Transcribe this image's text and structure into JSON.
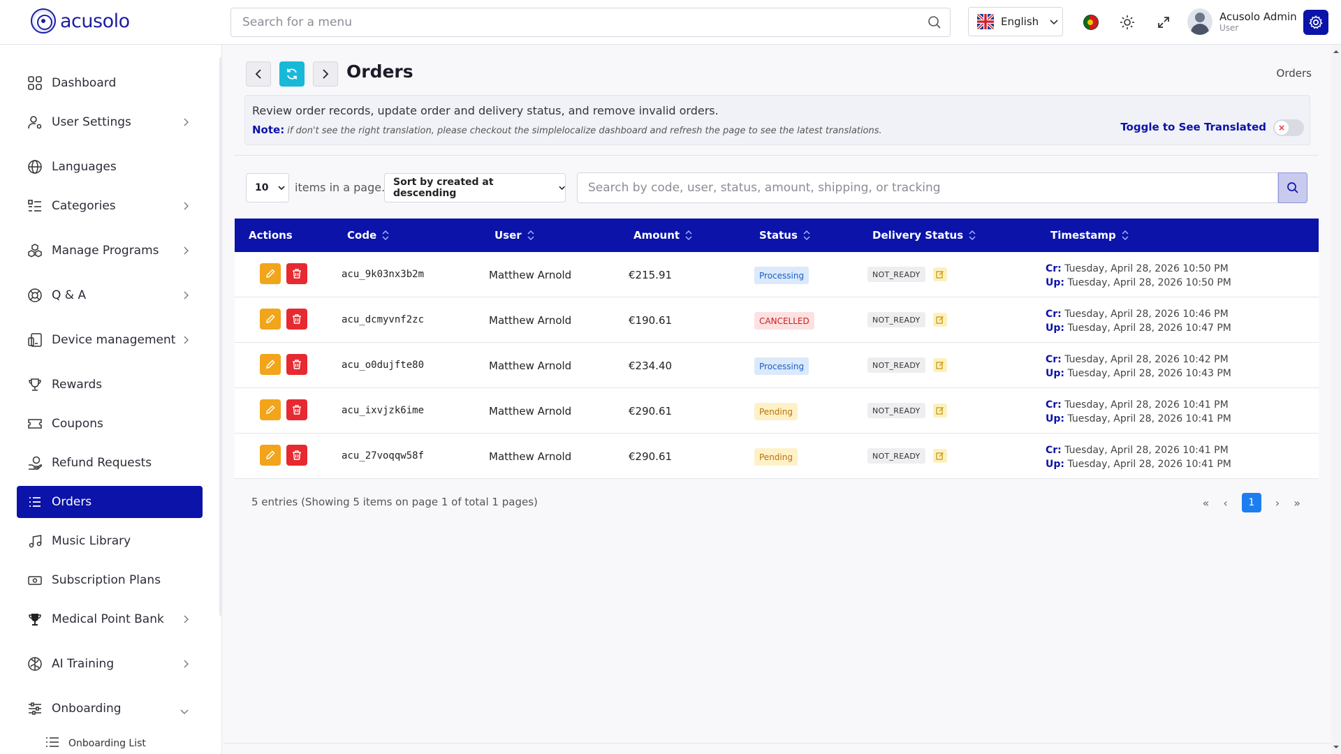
{
  "header": {
    "logo_text": "acusolo",
    "search_placeholder": "Search for a menu",
    "language": "English",
    "user_name": "Acusolo Admin",
    "user_role": "User"
  },
  "sidebar": {
    "items": [
      {
        "label": "Dashboard",
        "icon": "grid-icon",
        "has_arrow": false
      },
      {
        "label": "User Settings",
        "icon": "user-settings-icon",
        "has_arrow": true
      },
      {
        "label": "Languages",
        "icon": "globe-icon",
        "has_arrow": false
      },
      {
        "label": "Categories",
        "icon": "list-check-icon",
        "has_arrow": true
      },
      {
        "label": "Manage Programs",
        "icon": "cubes-icon",
        "has_arrow": true
      },
      {
        "label": "Q & A",
        "icon": "help-icon",
        "has_arrow": true
      },
      {
        "label": "Device management",
        "icon": "device-icon",
        "has_arrow": true
      },
      {
        "label": "Rewards",
        "icon": "trophy-icon",
        "has_arrow": false
      },
      {
        "label": "Coupons",
        "icon": "ticket-icon",
        "has_arrow": false
      },
      {
        "label": "Refund Requests",
        "icon": "refund-icon",
        "has_arrow": false
      },
      {
        "label": "Orders",
        "icon": "list-icon",
        "has_arrow": false,
        "active": true
      },
      {
        "label": "Music Library",
        "icon": "music-icon",
        "has_arrow": false
      },
      {
        "label": "Subscription Plans",
        "icon": "money-icon",
        "has_arrow": false
      },
      {
        "label": "Medical Point Bank",
        "icon": "trophy-filled-icon",
        "has_arrow": true
      },
      {
        "label": "AI Training",
        "icon": "brain-icon",
        "has_arrow": true
      },
      {
        "label": "Onboarding",
        "icon": "sliders-icon",
        "has_arrow": true,
        "expanded": true
      }
    ],
    "sub_item": "Onboarding List"
  },
  "page": {
    "title": "Orders",
    "breadcrumb": "Orders",
    "description": "Review order records, update order and delivery status, and remove invalid orders.",
    "note_label": "Note:",
    "note_text": "if don't see the right translation, please checkout the simplelocalize dashboard and refresh the page to see the latest translations.",
    "toggle_label": "Toggle to See Translated"
  },
  "filters": {
    "page_size": "10",
    "items_label": "items in a page.",
    "sort": "Sort by created at descending",
    "search_placeholder": "Search by code, user, status, amount, shipping, or tracking"
  },
  "table": {
    "headers": [
      "Actions",
      "Code",
      "User",
      "Amount",
      "Status",
      "Delivery Status",
      "Timestamp"
    ],
    "created_prefix": "Cr:",
    "updated_prefix": "Up:",
    "rows": [
      {
        "code": "acu_9k03nx3b2m",
        "user": "Matthew Arnold",
        "amount": "€215.91",
        "status": "Processing",
        "delivery": "NOT_READY",
        "created": "Tuesday, April 28, 2026 10:50 PM",
        "updated": "Tuesday, April 28, 2026 10:50 PM"
      },
      {
        "code": "acu_dcmyvnf2zc",
        "user": "Matthew Arnold",
        "amount": "€190.61",
        "status": "CANCELLED",
        "delivery": "NOT_READY",
        "created": "Tuesday, April 28, 2026 10:46 PM",
        "updated": "Tuesday, April 28, 2026 10:47 PM"
      },
      {
        "code": "acu_o0dujfte80",
        "user": "Matthew Arnold",
        "amount": "€234.40",
        "status": "Processing",
        "delivery": "NOT_READY",
        "created": "Tuesday, April 28, 2026 10:42 PM",
        "updated": "Tuesday, April 28, 2026 10:43 PM"
      },
      {
        "code": "acu_ixvjzk6ime",
        "user": "Matthew Arnold",
        "amount": "€290.61",
        "status": "Pending",
        "delivery": "NOT_READY",
        "created": "Tuesday, April 28, 2026 10:41 PM",
        "updated": "Tuesday, April 28, 2026 10:41 PM"
      },
      {
        "code": "acu_27voqqw58f",
        "user": "Matthew Arnold",
        "amount": "€290.61",
        "status": "Pending",
        "delivery": "NOT_READY",
        "created": "Tuesday, April 28, 2026 10:41 PM",
        "updated": "Tuesday, April 28, 2026 10:41 PM"
      }
    ]
  },
  "pagination": {
    "summary": "5 entries (Showing 5 items on page 1 of total 1 pages)",
    "current": "1"
  },
  "colors": {
    "primary": "#0b13a8",
    "refresh": "#18b8d9",
    "edit": "#f2a41a",
    "delete": "#e72930",
    "page_active": "#1c7ef0"
  }
}
